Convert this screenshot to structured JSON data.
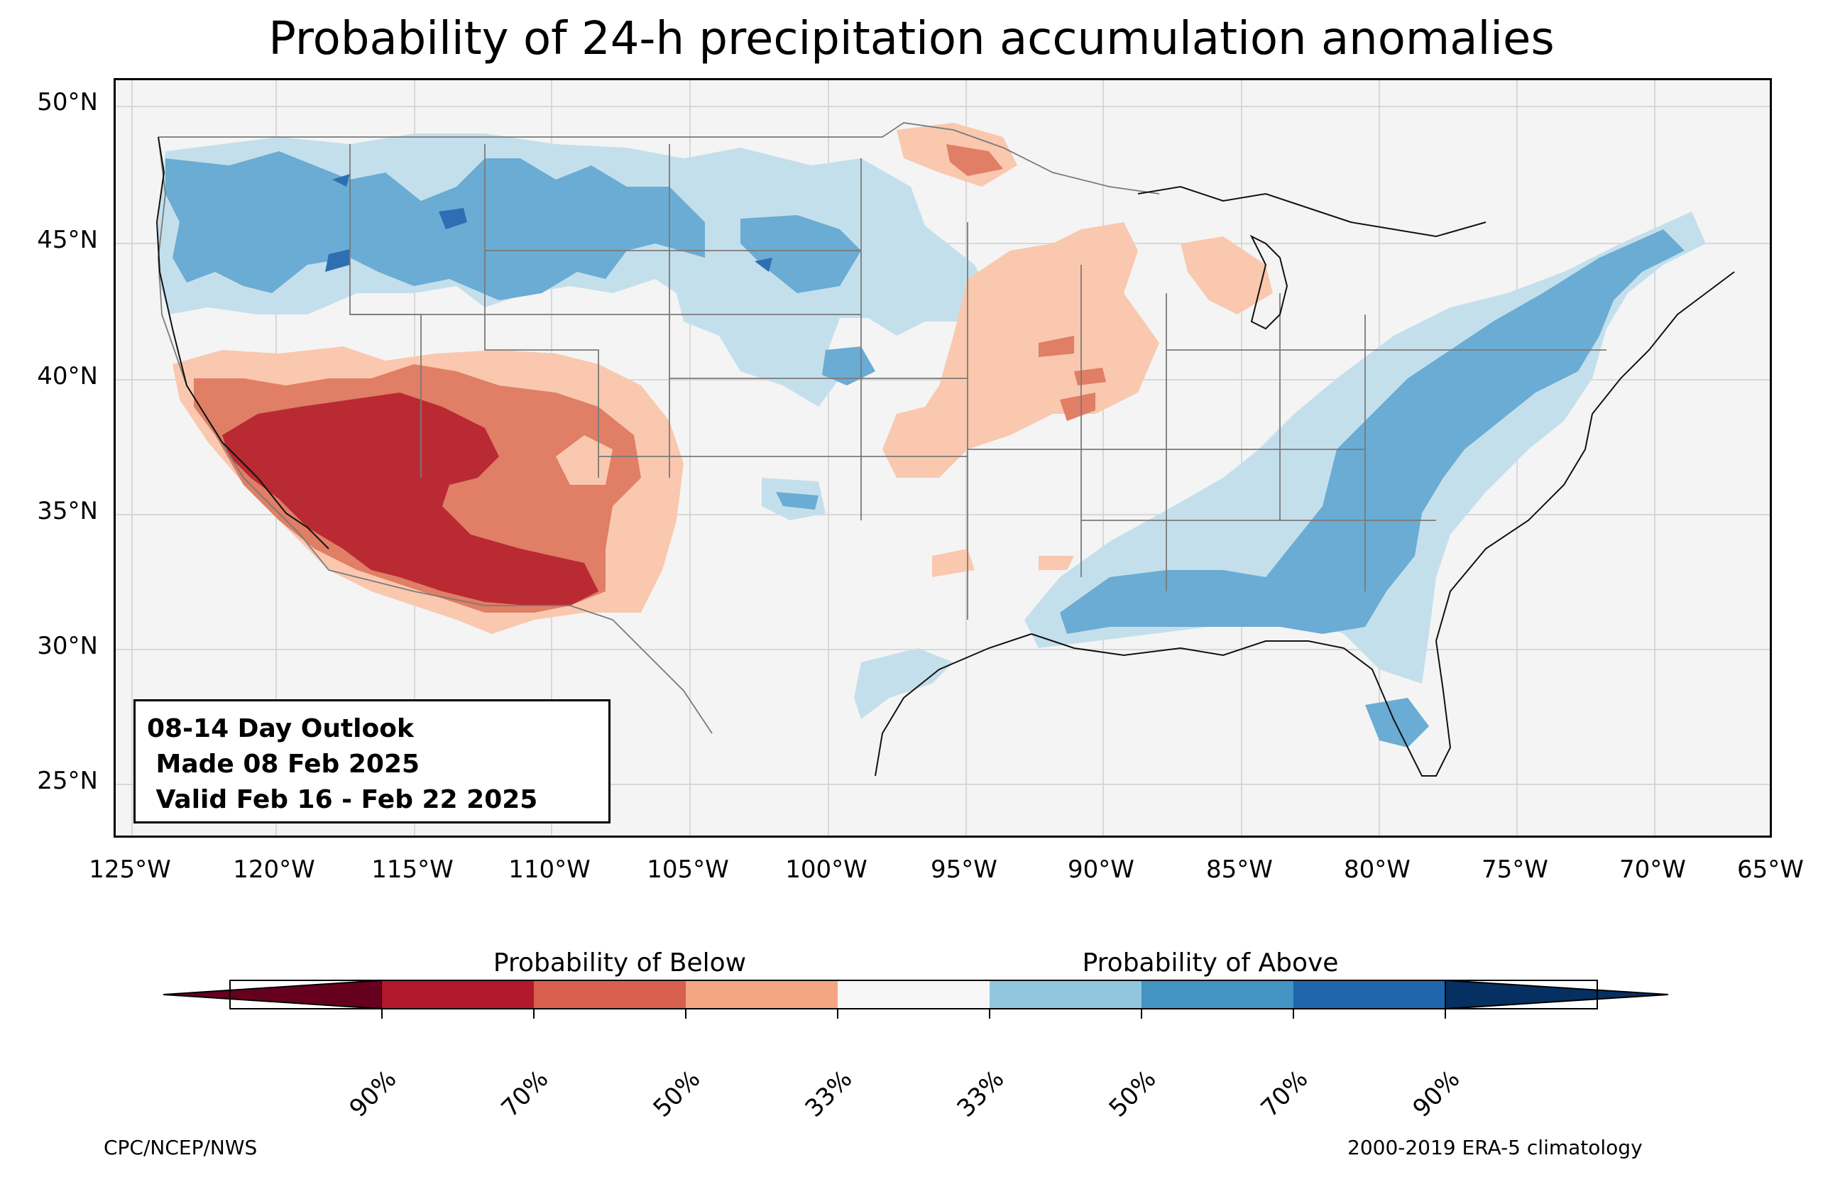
{
  "title": "Probability of 24-h precipitation accumulation anomalies",
  "outlook": {
    "line1": "08-14 Day Outlook",
    "line2": " Made 08 Feb 2025",
    "line3": " Valid Feb 16 - Feb 22 2025"
  },
  "lat_ticks": [
    "50°N",
    "45°N",
    "40°N",
    "35°N",
    "30°N",
    "25°N"
  ],
  "lon_ticks": [
    "125°W",
    "120°W",
    "115°W",
    "110°W",
    "105°W",
    "100°W",
    "95°W",
    "90°W",
    "85°W",
    "80°W",
    "75°W",
    "70°W",
    "65°W"
  ],
  "colorbar": {
    "below_label": "Probability of Below",
    "above_label": "Probability of Above",
    "tick_labels": [
      "90%",
      "70%",
      "50%",
      "33%",
      "33%",
      "50%",
      "70%",
      "90%"
    ],
    "colors": [
      "#67001f",
      "#b2182b",
      "#d6604d",
      "#f4a582",
      "#f7f7f7",
      "#92c5de",
      "#4393c3",
      "#2166ac",
      "#053061"
    ]
  },
  "colors": {
    "below_33": "#f9c8ae",
    "below_50": "#e07e66",
    "below_70": "#ba2a33",
    "above_33": "#c4dfec",
    "above_50": "#6aacd3",
    "above_70": "#2e6fb3",
    "background": "#f4f4f4"
  },
  "footer": {
    "left": "CPC/NCEP/NWS",
    "right": "2000-2019 ERA-5 climatology"
  }
}
